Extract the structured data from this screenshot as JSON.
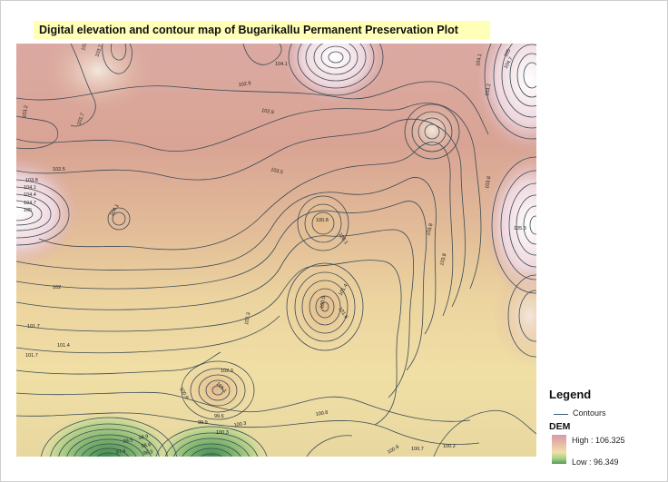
{
  "title": "Digital elevation and contour map of Bugarikallu Permanent Preservation  Plot",
  "legend": {
    "title": "Legend",
    "contours_label": "Contours",
    "dem_label": "DEM",
    "high_label": "High : 106.325",
    "low_label": "Low : 96.349"
  },
  "contour_labels": [
    "103.5",
    "104.1",
    "103.7",
    "102.9",
    "103.2",
    "102.9",
    "101.7",
    "102.5",
    "103.8",
    "104.1",
    "104.4",
    "104.7",
    "105",
    "104.1",
    "103.5",
    "100.8",
    "100.1",
    "103.8",
    "103.8",
    "101.8",
    "100.5",
    "101.4",
    "102",
    "101.7",
    "101.4",
    "101.7",
    "102.3",
    "102.3",
    "101.1",
    "100.9",
    "99.9",
    "99.6",
    "100.3",
    "100.3",
    "99.5",
    "98.9",
    "98.6",
    "98.3",
    "97.4",
    "100.8",
    "100.7",
    "100.2",
    "100.9",
    "105",
    "104.7",
    "104.1",
    "103.2",
    "103.8",
    "105.3"
  ],
  "colors": {
    "high": "#d99aa8",
    "mid": "#efe0a8",
    "low": "#4f9a55",
    "contour": "#3a4a55"
  }
}
